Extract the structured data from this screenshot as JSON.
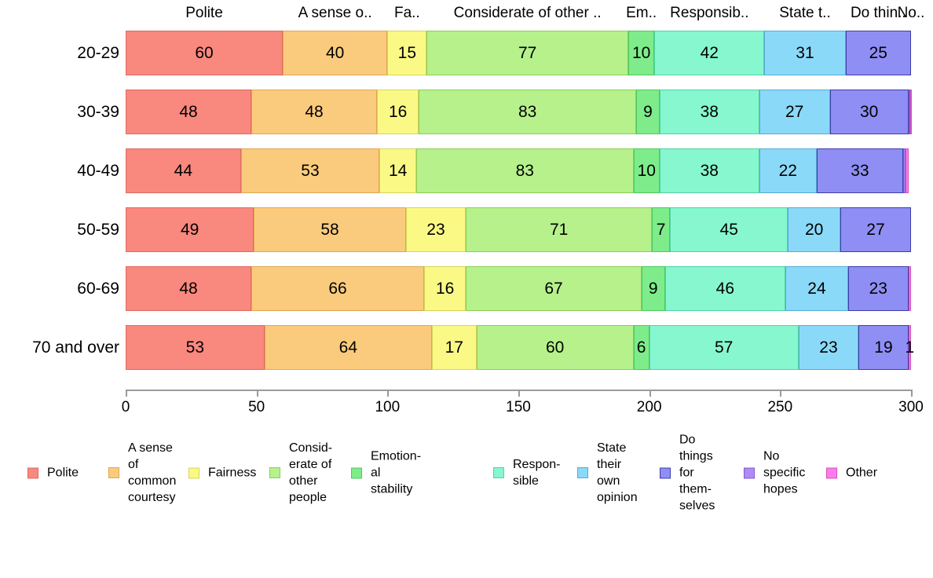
{
  "chart_data": {
    "type": "bar",
    "orientation": "horizontal",
    "stacked": true,
    "title": "",
    "xlabel": "",
    "ylabel": "",
    "grid": false,
    "legend_position": "bottom",
    "xlim": [
      0,
      300
    ],
    "x_ticks": [
      0,
      50,
      100,
      150,
      200,
      250,
      300
    ],
    "categories": [
      "20-29",
      "30-39",
      "40-49",
      "50-59",
      "60-69",
      "70 and over"
    ],
    "series": [
      {
        "id": "polite",
        "name": "Polite",
        "header": "Polite",
        "color": "#F9887E",
        "border": "#DE6A60",
        "values": [
          60,
          48,
          44,
          49,
          48,
          53
        ],
        "labels": [
          "60",
          "48",
          "44",
          "49",
          "48",
          "53"
        ]
      },
      {
        "id": "common-courtesy",
        "name": "A sense of common courtesy",
        "header": "A sense o..",
        "color": "#FBCB7D",
        "border": "#DFA752",
        "values": [
          40,
          48,
          53,
          58,
          66,
          64
        ],
        "labels": [
          "40",
          "48",
          "53",
          "58",
          "66",
          "64"
        ]
      },
      {
        "id": "fairness",
        "name": "Fairness",
        "header": "Fa..",
        "color": "#FBF986",
        "border": "#D6D45C",
        "values": [
          15,
          16,
          14,
          23,
          16,
          17
        ],
        "labels": [
          "15",
          "16",
          "14",
          "23",
          "16",
          "17"
        ]
      },
      {
        "id": "considerate",
        "name": "Considerate of other people",
        "header": "Considerate of other ..",
        "color": "#B6F18C",
        "border": "#8CCE57",
        "values": [
          77,
          83,
          83,
          71,
          67,
          60
        ],
        "labels": [
          "77",
          "83",
          "83",
          "71",
          "67",
          "60"
        ]
      },
      {
        "id": "emotional-stability",
        "name": "Emotional stability",
        "header": "Em..",
        "color": "#7EEC8A",
        "border": "#4FC95F",
        "values": [
          10,
          9,
          10,
          7,
          9,
          6
        ],
        "labels": [
          "10",
          "9",
          "10",
          "7",
          "9",
          "6"
        ]
      },
      {
        "id": "responsible",
        "name": "Responsible",
        "header": "Responsib..",
        "color": "#86F7CF",
        "border": "#50D3A5",
        "values": [
          42,
          38,
          38,
          45,
          46,
          57
        ],
        "labels": [
          "42",
          "38",
          "38",
          "45",
          "46",
          "57"
        ]
      },
      {
        "id": "state-own-opinion",
        "name": "State their own opinion",
        "header": "State t..",
        "color": "#8BD9F9",
        "border": "#57ABD4",
        "values": [
          31,
          27,
          22,
          20,
          24,
          23
        ],
        "labels": [
          "31",
          "27",
          "22",
          "20",
          "24",
          "23"
        ]
      },
      {
        "id": "do-things-themselves",
        "name": "Do things for themselves",
        "header": "Do thin..",
        "color": "#8F8EF4",
        "border": "#3E3EA8",
        "values": [
          25,
          30,
          33,
          27,
          23,
          19
        ],
        "labels": [
          "25",
          "30",
          "33",
          "27",
          "23",
          "19"
        ]
      },
      {
        "id": "no-specific-hopes",
        "name": "No specific hopes",
        "header": "No..",
        "color": "#AE8CF6",
        "border": "#8157D1",
        "values": [
          0,
          0.5,
          1,
          0,
          0,
          0
        ],
        "labels": [
          "",
          "",
          "",
          "",
          "",
          ""
        ]
      },
      {
        "id": "other",
        "name": "Other",
        "header": null,
        "color": "#FA7DE9",
        "border": "#D94FBE",
        "values": [
          0,
          0.5,
          1,
          0,
          1,
          1
        ],
        "labels": [
          "",
          "",
          "",
          "",
          "",
          "1"
        ]
      }
    ]
  },
  "legend": {
    "items": [
      {
        "series": "polite",
        "lines": [
          "Polite"
        ]
      },
      {
        "series": "common-courtesy",
        "lines": [
          "A sense",
          "of",
          "common",
          "courtesy"
        ]
      },
      {
        "series": "fairness",
        "lines": [
          "Fairness"
        ]
      },
      {
        "series": "considerate",
        "lines": [
          "Consid-",
          "erate of",
          "other",
          "people"
        ]
      },
      {
        "series": "emotional-stability",
        "lines": [
          "Emotion-",
          "al",
          "stability"
        ]
      },
      {
        "series": "responsible",
        "lines": [
          "Respon-",
          "sible"
        ]
      },
      {
        "series": "state-own-opinion",
        "lines": [
          "State",
          "their",
          "own",
          "opinion"
        ]
      },
      {
        "series": "do-things-themselves",
        "lines": [
          "Do",
          "things",
          "for",
          "them-",
          "selves"
        ]
      },
      {
        "series": "no-specific-hopes",
        "lines": [
          "No",
          "specific",
          "hopes"
        ]
      },
      {
        "series": "other",
        "lines": [
          "Other"
        ]
      }
    ]
  }
}
